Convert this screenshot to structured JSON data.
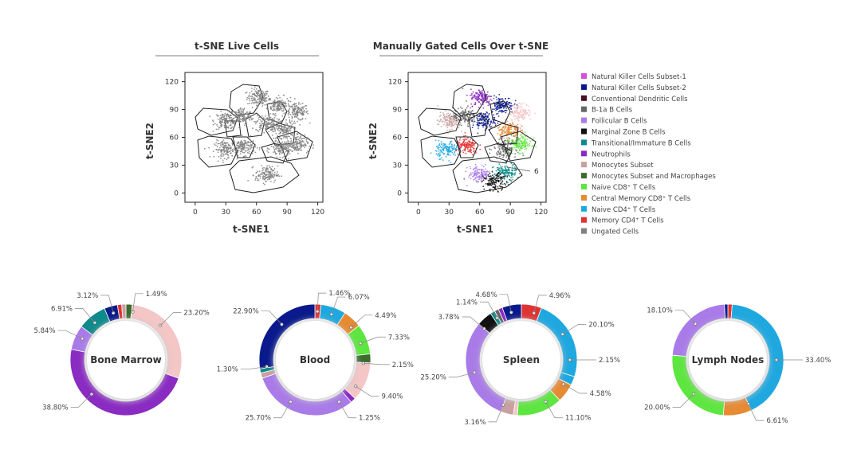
{
  "colors": {
    "nk1": "#d64fd6",
    "nk2": "#0a1a8c",
    "cdc": "#4a1020",
    "b1a": "#666666",
    "folb": "#a97be8",
    "mzb": "#111111",
    "trans": "#0e8a8a",
    "neut": "#8a2bc2",
    "mono": "#c9a0a0",
    "monomac": "#3d6b2e",
    "cd8n": "#5ee640",
    "cd8cm": "#e68a33",
    "cd4n": "#1fa8e0",
    "cd4m": "#e03333",
    "ung": "#808080",
    "pink": "#f4c6c6"
  },
  "chart_data": [
    {
      "type": "scatter",
      "title": "t-SNE Live Cells",
      "xlabel": "t-SNE1",
      "ylabel": "t-SNE2",
      "xlim": [
        -10,
        125
      ],
      "ylim": [
        -10,
        130
      ],
      "xticks": [
        "0",
        "30",
        "60",
        "90",
        "120"
      ],
      "yticks": [
        "0",
        "30",
        "60",
        "90",
        "120"
      ],
      "clusters": [
        {
          "x": 62,
          "y": 103,
          "color": "ung"
        },
        {
          "x": 82,
          "y": 95,
          "color": "ung"
        },
        {
          "x": 100,
          "y": 87,
          "color": "ung"
        },
        {
          "x": 30,
          "y": 78,
          "color": "ung"
        },
        {
          "x": 45,
          "y": 83,
          "color": "ung"
        },
        {
          "x": 70,
          "y": 75,
          "color": "ung"
        },
        {
          "x": 88,
          "y": 68,
          "color": "ung"
        },
        {
          "x": 30,
          "y": 47,
          "color": "ung"
        },
        {
          "x": 48,
          "y": 50,
          "color": "ung"
        },
        {
          "x": 85,
          "y": 48,
          "color": "ung"
        },
        {
          "x": 100,
          "y": 53,
          "color": "ung"
        },
        {
          "x": 70,
          "y": 20,
          "color": "ung"
        }
      ]
    },
    {
      "type": "scatter",
      "title": "Manually Gated Cells Over t-SNE",
      "xlabel": "t-SNE1",
      "ylabel": "t-SNE2",
      "xlim": [
        -10,
        125
      ],
      "ylim": [
        -10,
        130
      ],
      "xticks": [
        "0",
        "30",
        "60",
        "90",
        "120"
      ],
      "yticks": [
        "0",
        "30",
        "60",
        "90",
        "120"
      ],
      "annotation": "6",
      "clusters": [
        {
          "x": 62,
          "y": 103,
          "color": "neut"
        },
        {
          "x": 82,
          "y": 95,
          "color": "nk2"
        },
        {
          "x": 64,
          "y": 78,
          "color": "nk2"
        },
        {
          "x": 30,
          "y": 78,
          "color": "mono"
        },
        {
          "x": 45,
          "y": 83,
          "color": "b1a"
        },
        {
          "x": 100,
          "y": 87,
          "color": "pink"
        },
        {
          "x": 88,
          "y": 68,
          "color": "cd8cm"
        },
        {
          "x": 28,
          "y": 47,
          "color": "cd4n"
        },
        {
          "x": 48,
          "y": 50,
          "color": "cd4m"
        },
        {
          "x": 85,
          "y": 48,
          "color": "b1a"
        },
        {
          "x": 100,
          "y": 53,
          "color": "cd8n"
        },
        {
          "x": 60,
          "y": 20,
          "color": "folb"
        },
        {
          "x": 85,
          "y": 22,
          "color": "trans"
        },
        {
          "x": 75,
          "y": 12,
          "color": "mzb"
        }
      ]
    },
    {
      "type": "pie",
      "label": "Bone Marrow",
      "slices": [
        {
          "value": 1.49,
          "color": "monomac"
        },
        {
          "value": 23.2,
          "color": "pink"
        },
        {
          "value": 38.8,
          "color": "neut"
        },
        {
          "value": 5.84,
          "color": "folb"
        },
        {
          "value": 6.91,
          "color": "trans"
        },
        {
          "value": 3.12,
          "color": "nk2"
        },
        {
          "value": 1.0,
          "color": "cd4m"
        },
        {
          "value": 1.0,
          "color": "mono"
        }
      ],
      "labels": [
        {
          "text": "1.49%",
          "angle": 8
        },
        {
          "text": "23.20%",
          "angle": 45
        },
        {
          "text": "38.80%",
          "angle": 225
        },
        {
          "text": "5.84%",
          "angle": 296
        },
        {
          "text": "6.91%",
          "angle": 320
        },
        {
          "text": "3.12%",
          "angle": 345
        }
      ]
    },
    {
      "type": "pie",
      "label": "Blood",
      "slices": [
        {
          "value": 1.46,
          "color": "cd4m"
        },
        {
          "value": 6.07,
          "color": "cd4n"
        },
        {
          "value": 4.49,
          "color": "cd8cm"
        },
        {
          "value": 7.33,
          "color": "cd8n"
        },
        {
          "value": 2.15,
          "color": "monomac"
        },
        {
          "value": 9.4,
          "color": "pink"
        },
        {
          "value": 1.25,
          "color": "neut"
        },
        {
          "value": 25.7,
          "color": "folb"
        },
        {
          "value": 1.3,
          "color": "mono"
        },
        {
          "value": 1.0,
          "color": "trans"
        },
        {
          "value": 22.9,
          "color": "nk2"
        }
      ],
      "labels": [
        {
          "text": "1.46%",
          "angle": 3
        },
        {
          "text": "6.07%",
          "angle": 20
        },
        {
          "text": "4.49%",
          "angle": 48
        },
        {
          "text": "7.33%",
          "angle": 70
        },
        {
          "text": "2.15%",
          "angle": 94
        },
        {
          "text": "9.40%",
          "angle": 123
        },
        {
          "text": "1.25%",
          "angle": 150
        },
        {
          "text": "25.70%",
          "angle": 210
        },
        {
          "text": "1.30%",
          "angle": 262
        },
        {
          "text": "22.90%",
          "angle": 317
        }
      ]
    },
    {
      "type": "pie",
      "label": "Spleen",
      "slices": [
        {
          "value": 4.96,
          "color": "cd4m"
        },
        {
          "value": 20.1,
          "color": "cd4n"
        },
        {
          "value": 2.15,
          "color": "cd4n"
        },
        {
          "value": 4.58,
          "color": "cd8cm"
        },
        {
          "value": 11.1,
          "color": "cd8n"
        },
        {
          "value": 1.0,
          "color": "pink"
        },
        {
          "value": 3.16,
          "color": "mono"
        },
        {
          "value": 25.2,
          "color": "folb"
        },
        {
          "value": 3.78,
          "color": "mzb"
        },
        {
          "value": 1.14,
          "color": "trans"
        },
        {
          "value": 1.0,
          "color": "b1a"
        },
        {
          "value": 1.0,
          "color": "neut"
        },
        {
          "value": 4.68,
          "color": "nk2"
        }
      ],
      "labels": [
        {
          "text": "4.96%",
          "angle": 15
        },
        {
          "text": "20.10%",
          "angle": 58
        },
        {
          "text": "2.15%",
          "angle": 90
        },
        {
          "text": "4.58%",
          "angle": 120
        },
        {
          "text": "11.10%",
          "angle": 150
        },
        {
          "text": "3.16%",
          "angle": 202
        },
        {
          "text": "25.20%",
          "angle": 255
        },
        {
          "text": "3.78%",
          "angle": 310
        },
        {
          "text": "1.14%",
          "angle": 330
        },
        {
          "text": "4.68%",
          "angle": 348
        }
      ]
    },
    {
      "type": "pie",
      "label": "Lymph Nodes",
      "slices": [
        {
          "value": 1.0,
          "color": "cd4m"
        },
        {
          "value": 33.4,
          "color": "cd4n"
        },
        {
          "value": 6.61,
          "color": "cd8cm"
        },
        {
          "value": 20.0,
          "color": "cd8n"
        },
        {
          "value": 18.1,
          "color": "folb"
        },
        {
          "value": 0.8,
          "color": "nk2"
        }
      ],
      "labels": [
        {
          "text": "33.40%",
          "angle": 90
        },
        {
          "text": "6.61%",
          "angle": 155
        },
        {
          "text": "20.00%",
          "angle": 225
        },
        {
          "text": "18.10%",
          "angle": 318
        }
      ]
    }
  ],
  "legend": [
    {
      "color": "nk1",
      "html": "Natural Killer Cells Subset-1"
    },
    {
      "color": "nk2",
      "html": "Natural Killer Cells Subset-2"
    },
    {
      "color": "cdc",
      "html": "Conventional Dendritic Cells"
    },
    {
      "color": "b1a",
      "html": "B-1a B Cells"
    },
    {
      "color": "folb",
      "html": "Follicular B Cells"
    },
    {
      "color": "mzb",
      "html": "Marginal Zone B Cells"
    },
    {
      "color": "trans",
      "html": "Transitional/Immature B Cells"
    },
    {
      "color": "neut",
      "html": "Neutrophils"
    },
    {
      "color": "mono",
      "html": "Monocytes Subset"
    },
    {
      "color": "monomac",
      "html": "Monocytes Subset and Macrophages"
    },
    {
      "color": "cd8n",
      "html": "Naive CD8⁺ T Cells"
    },
    {
      "color": "cd8cm",
      "html": "Central Memory CD8⁺ T Cells"
    },
    {
      "color": "cd4n",
      "html": "Naive CD4⁺ T Cells"
    },
    {
      "color": "cd4m",
      "html": "Memory CD4⁺ T Cells"
    },
    {
      "color": "ung",
      "html": "Ungated Cells"
    }
  ]
}
